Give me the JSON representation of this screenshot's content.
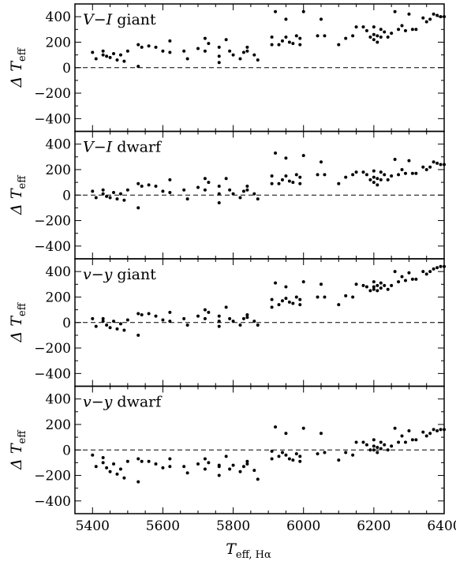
{
  "chart_data": {
    "type": "scatter",
    "layout": "stacked-panels",
    "xlabel": "T_eff, Hα",
    "xlabel_main": "T",
    "xlabel_sub": "eff, Hα",
    "ylabel": "Δ T_eff",
    "ylabel_main": "Δ T",
    "ylabel_sub": "eff",
    "xlim": [
      5350,
      6400
    ],
    "ylim": [
      -500,
      500
    ],
    "xticks": [
      5400,
      5600,
      5800,
      6000,
      6200,
      6400
    ],
    "yticks": [
      -400,
      -200,
      0,
      200,
      400
    ],
    "reference_line": {
      "y": 0,
      "style": "dashed"
    },
    "point_color": "#000000",
    "panels": [
      {
        "label": "V−I giant",
        "label_parts": [
          "V",
          "−",
          "I",
          " giant"
        ],
        "x": [
          5400,
          5410,
          5430,
          5430,
          5440,
          5450,
          5460,
          5470,
          5480,
          5490,
          5500,
          5530,
          5530,
          5540,
          5560,
          5580,
          5600,
          5620,
          5620,
          5660,
          5670,
          5700,
          5720,
          5720,
          5730,
          5760,
          5760,
          5760,
          5780,
          5790,
          5800,
          5820,
          5830,
          5840,
          5840,
          5860,
          5870,
          5910,
          5910,
          5920,
          5930,
          5940,
          5950,
          5950,
          5960,
          5970,
          5980,
          5990,
          5990,
          6000,
          6040,
          6050,
          6060,
          6100,
          6120,
          6140,
          6150,
          6170,
          6180,
          6190,
          6200,
          6200,
          6200,
          6210,
          6210,
          6220,
          6220,
          6230,
          6240,
          6250,
          6260,
          6270,
          6280,
          6290,
          6300,
          6310,
          6320,
          6340,
          6350,
          6360,
          6370,
          6380,
          6390,
          6400
        ],
        "y": [
          120,
          70,
          100,
          130,
          90,
          80,
          110,
          60,
          100,
          50,
          130,
          10,
          180,
          160,
          170,
          160,
          130,
          120,
          210,
          130,
          70,
          150,
          230,
          130,
          190,
          40,
          90,
          160,
          220,
          130,
          100,
          70,
          120,
          130,
          160,
          100,
          60,
          180,
          240,
          440,
          180,
          210,
          380,
          240,
          200,
          190,
          250,
          230,
          180,
          440,
          250,
          380,
          250,
          180,
          230,
          250,
          320,
          320,
          290,
          240,
          260,
          220,
          320,
          250,
          200,
          240,
          300,
          280,
          240,
          270,
          440,
          300,
          330,
          290,
          420,
          300,
          300,
          390,
          360,
          380,
          420,
          410,
          400,
          400
        ]
      },
      {
        "label": "V−I dwarf",
        "label_parts": [
          "V",
          "−",
          "I",
          " dwarf"
        ],
        "x": [
          5400,
          5410,
          5430,
          5430,
          5440,
          5450,
          5460,
          5470,
          5480,
          5490,
          5500,
          5530,
          5530,
          5540,
          5560,
          5580,
          5600,
          5620,
          5620,
          5660,
          5670,
          5700,
          5720,
          5720,
          5730,
          5760,
          5760,
          5760,
          5780,
          5790,
          5800,
          5820,
          5830,
          5840,
          5840,
          5860,
          5870,
          5910,
          5910,
          5920,
          5930,
          5940,
          5950,
          5950,
          5960,
          5970,
          5980,
          5990,
          5990,
          6000,
          6040,
          6050,
          6060,
          6100,
          6120,
          6140,
          6150,
          6170,
          6180,
          6190,
          6200,
          6200,
          6200,
          6210,
          6210,
          6220,
          6220,
          6230,
          6240,
          6250,
          6260,
          6270,
          6280,
          6290,
          6300,
          6310,
          6320,
          6340,
          6350,
          6360,
          6370,
          6380,
          6390,
          6400
        ],
        "y": [
          30,
          -20,
          10,
          40,
          -10,
          -20,
          20,
          -30,
          10,
          -40,
          40,
          -100,
          90,
          70,
          80,
          70,
          30,
          20,
          120,
          40,
          -30,
          60,
          130,
          40,
          100,
          -60,
          10,
          70,
          130,
          40,
          10,
          -20,
          30,
          40,
          70,
          10,
          -30,
          90,
          150,
          330,
          90,
          120,
          290,
          150,
          110,
          100,
          160,
          140,
          90,
          310,
          160,
          260,
          160,
          90,
          140,
          160,
          180,
          180,
          160,
          120,
          140,
          100,
          190,
          130,
          80,
          120,
          180,
          160,
          120,
          150,
          280,
          160,
          200,
          170,
          270,
          170,
          170,
          220,
          200,
          220,
          260,
          250,
          240,
          240
        ]
      },
      {
        "label": "v−y giant",
        "label_parts": [
          "v",
          "−",
          "y",
          " giant"
        ],
        "x": [
          5400,
          5410,
          5430,
          5430,
          5440,
          5450,
          5460,
          5470,
          5480,
          5490,
          5500,
          5530,
          5530,
          5540,
          5560,
          5580,
          5600,
          5620,
          5620,
          5660,
          5670,
          5700,
          5720,
          5720,
          5730,
          5760,
          5760,
          5760,
          5780,
          5790,
          5800,
          5820,
          5830,
          5840,
          5840,
          5860,
          5870,
          5910,
          5910,
          5920,
          5930,
          5940,
          5950,
          5950,
          5960,
          5970,
          5980,
          5990,
          5990,
          6000,
          6040,
          6050,
          6060,
          6100,
          6120,
          6140,
          6150,
          6170,
          6180,
          6190,
          6200,
          6200,
          6200,
          6210,
          6210,
          6220,
          6220,
          6230,
          6240,
          6250,
          6260,
          6270,
          6280,
          6290,
          6300,
          6310,
          6320,
          6340,
          6350,
          6360,
          6370,
          6380,
          6390,
          6400
        ],
        "y": [
          30,
          -30,
          10,
          30,
          -20,
          -40,
          10,
          -50,
          -10,
          -60,
          20,
          -100,
          70,
          60,
          70,
          50,
          20,
          10,
          80,
          30,
          -20,
          50,
          100,
          30,
          80,
          -30,
          10,
          50,
          120,
          30,
          10,
          -20,
          30,
          40,
          60,
          10,
          -20,
          120,
          180,
          310,
          140,
          170,
          280,
          190,
          160,
          150,
          200,
          180,
          140,
          320,
          200,
          300,
          200,
          140,
          210,
          200,
          300,
          290,
          280,
          250,
          280,
          260,
          320,
          290,
          250,
          270,
          310,
          290,
          260,
          290,
          400,
          320,
          360,
          330,
          390,
          340,
          340,
          400,
          380,
          400,
          420,
          430,
          440,
          440
        ]
      },
      {
        "label": "v−y dwarf",
        "label_parts": [
          "v",
          "−",
          "y",
          " dwarf"
        ],
        "x": [
          5400,
          5410,
          5430,
          5430,
          5440,
          5450,
          5460,
          5470,
          5480,
          5490,
          5500,
          5530,
          5530,
          5540,
          5560,
          5580,
          5600,
          5620,
          5620,
          5660,
          5670,
          5700,
          5720,
          5720,
          5730,
          5760,
          5760,
          5760,
          5780,
          5790,
          5800,
          5820,
          5830,
          5840,
          5840,
          5860,
          5870,
          5910,
          5910,
          5920,
          5930,
          5940,
          5950,
          5950,
          5960,
          5970,
          5980,
          5990,
          5990,
          6000,
          6040,
          6050,
          6060,
          6100,
          6120,
          6140,
          6150,
          6170,
          6180,
          6190,
          6200,
          6200,
          6200,
          6210,
          6210,
          6220,
          6220,
          6230,
          6240,
          6250,
          6260,
          6270,
          6280,
          6290,
          6300,
          6310,
          6320,
          6340,
          6350,
          6360,
          6370,
          6380,
          6390,
          6400
        ],
        "y": [
          -40,
          -130,
          -100,
          -60,
          -140,
          -170,
          -110,
          -190,
          -150,
          -220,
          -90,
          -250,
          -70,
          -90,
          -90,
          -110,
          -140,
          -130,
          -70,
          -130,
          -180,
          -110,
          -70,
          -150,
          -100,
          -200,
          -130,
          -120,
          -50,
          -150,
          -120,
          -170,
          -130,
          -110,
          -90,
          -160,
          -230,
          -70,
          -10,
          180,
          -50,
          -20,
          130,
          -40,
          -70,
          -80,
          -30,
          -50,
          -90,
          170,
          -30,
          130,
          -20,
          -80,
          -20,
          -40,
          60,
          60,
          40,
          0,
          30,
          0,
          80,
          20,
          -20,
          10,
          60,
          40,
          0,
          30,
          170,
          60,
          110,
          60,
          150,
          80,
          80,
          140,
          110,
          130,
          160,
          150,
          160,
          160
        ]
      }
    ]
  }
}
